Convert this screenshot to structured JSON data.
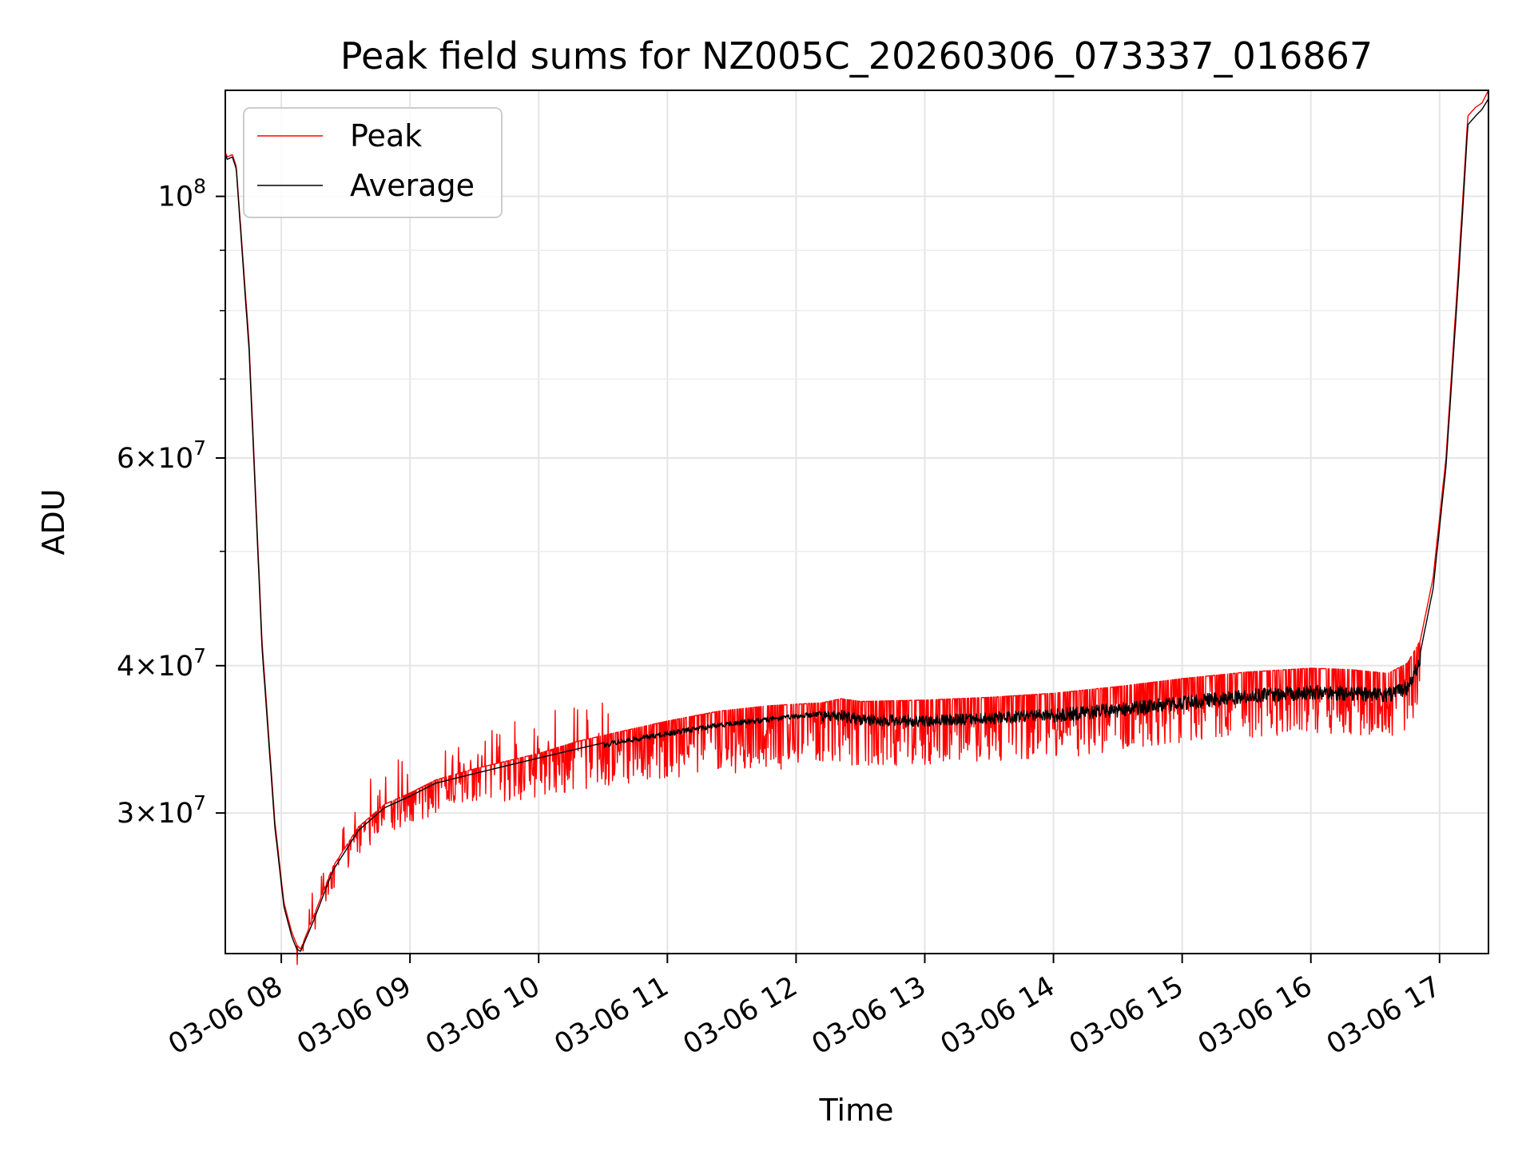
{
  "chart_data": {
    "type": "line",
    "title": "Peak field sums for NZ005C_20260306_073337_016867",
    "xlabel": "Time",
    "ylabel": "ADU",
    "yscale": "log",
    "ylim": [
      22800000,
      123000000
    ],
    "xlim_hours": [
      7.565,
      17.38
    ],
    "grid": true,
    "legend_position": "top-left",
    "x_ticks": [
      {
        "label": "03-06 08",
        "hour": 8
      },
      {
        "label": "03-06 09",
        "hour": 9
      },
      {
        "label": "03-06 10",
        "hour": 10
      },
      {
        "label": "03-06 11",
        "hour": 11
      },
      {
        "label": "03-06 12",
        "hour": 12
      },
      {
        "label": "03-06 13",
        "hour": 13
      },
      {
        "label": "03-06 14",
        "hour": 14
      },
      {
        "label": "03-06 15",
        "hour": 15
      },
      {
        "label": "03-06 16",
        "hour": 16
      },
      {
        "label": "03-06 17",
        "hour": 17
      }
    ],
    "y_ticks": [
      {
        "base": "3",
        "exp": "7",
        "value": 30000000
      },
      {
        "base": "4",
        "exp": "7",
        "value": 40000000
      },
      {
        "base": "6",
        "exp": "7",
        "value": 60000000
      },
      {
        "base": "",
        "exp": "8",
        "value": 100000000
      }
    ],
    "y_minor_ticks": [
      50000000,
      70000000,
      80000000,
      90000000
    ],
    "series": [
      {
        "name": "Peak",
        "color": "#ff0000",
        "spikes": true,
        "x_hours": [
          7.565,
          7.58,
          7.62,
          7.65,
          7.75,
          7.85,
          7.95,
          8.02,
          8.08,
          8.12,
          8.15,
          8.25,
          8.4,
          8.6,
          8.8,
          9.0,
          9.2,
          9.5,
          9.8,
          10.0,
          10.3,
          10.6,
          11.0,
          11.4,
          11.8,
          12.2,
          12.35,
          12.5,
          13.0,
          13.5,
          14.0,
          14.5,
          15.0,
          15.5,
          16.0,
          16.3,
          16.6,
          16.75,
          16.85,
          16.95,
          17.05,
          17.15,
          17.22,
          17.28,
          17.33,
          17.38
        ],
        "y_values": [
          109000000,
          108000000,
          108500000,
          106000000,
          75000000,
          42000000,
          29500000,
          25200000,
          23800000,
          23200000,
          23000000,
          24500000,
          27000000,
          29200000,
          30500000,
          31200000,
          32000000,
          32700000,
          33300000,
          33700000,
          34500000,
          35100000,
          35900000,
          36600000,
          37000000,
          37200000,
          37500000,
          37300000,
          37400000,
          37600000,
          37900000,
          38400000,
          39000000,
          39500000,
          39800000,
          39700000,
          39400000,
          40200000,
          42000000,
          47500000,
          60000000,
          88000000,
          117000000,
          119000000,
          120000000,
          123000000
        ]
      },
      {
        "name": "Average",
        "color": "#000000",
        "spikes": false,
        "x_hours": [
          7.565,
          7.58,
          7.62,
          7.65,
          7.75,
          7.85,
          7.95,
          8.02,
          8.08,
          8.12,
          8.15,
          8.25,
          8.4,
          8.6,
          8.8,
          9.0,
          9.2,
          9.5,
          9.8,
          10.0,
          10.3,
          10.6,
          11.0,
          11.4,
          11.8,
          12.2,
          12.35,
          12.5,
          13.0,
          13.5,
          14.0,
          14.5,
          15.0,
          15.5,
          16.0,
          16.3,
          16.6,
          16.75,
          16.85,
          16.95,
          17.05,
          17.15,
          17.22,
          17.28,
          17.33,
          17.38
        ],
        "y_values": [
          108500000,
          107500000,
          108000000,
          105500000,
          74000000,
          41500000,
          29200000,
          25000000,
          23600000,
          23000000,
          22900000,
          24300000,
          26800000,
          29000000,
          30300000,
          31000000,
          31800000,
          32400000,
          33000000,
          33400000,
          34000000,
          34600000,
          35200000,
          35800000,
          36200000,
          36600000,
          36700000,
          36400000,
          36300000,
          36500000,
          36800000,
          37200000,
          37700000,
          38200000,
          38500000,
          38400000,
          38300000,
          38800000,
          41000000,
          46500000,
          59000000,
          86000000,
          115000000,
          117000000,
          118500000,
          121000000
        ]
      }
    ]
  }
}
